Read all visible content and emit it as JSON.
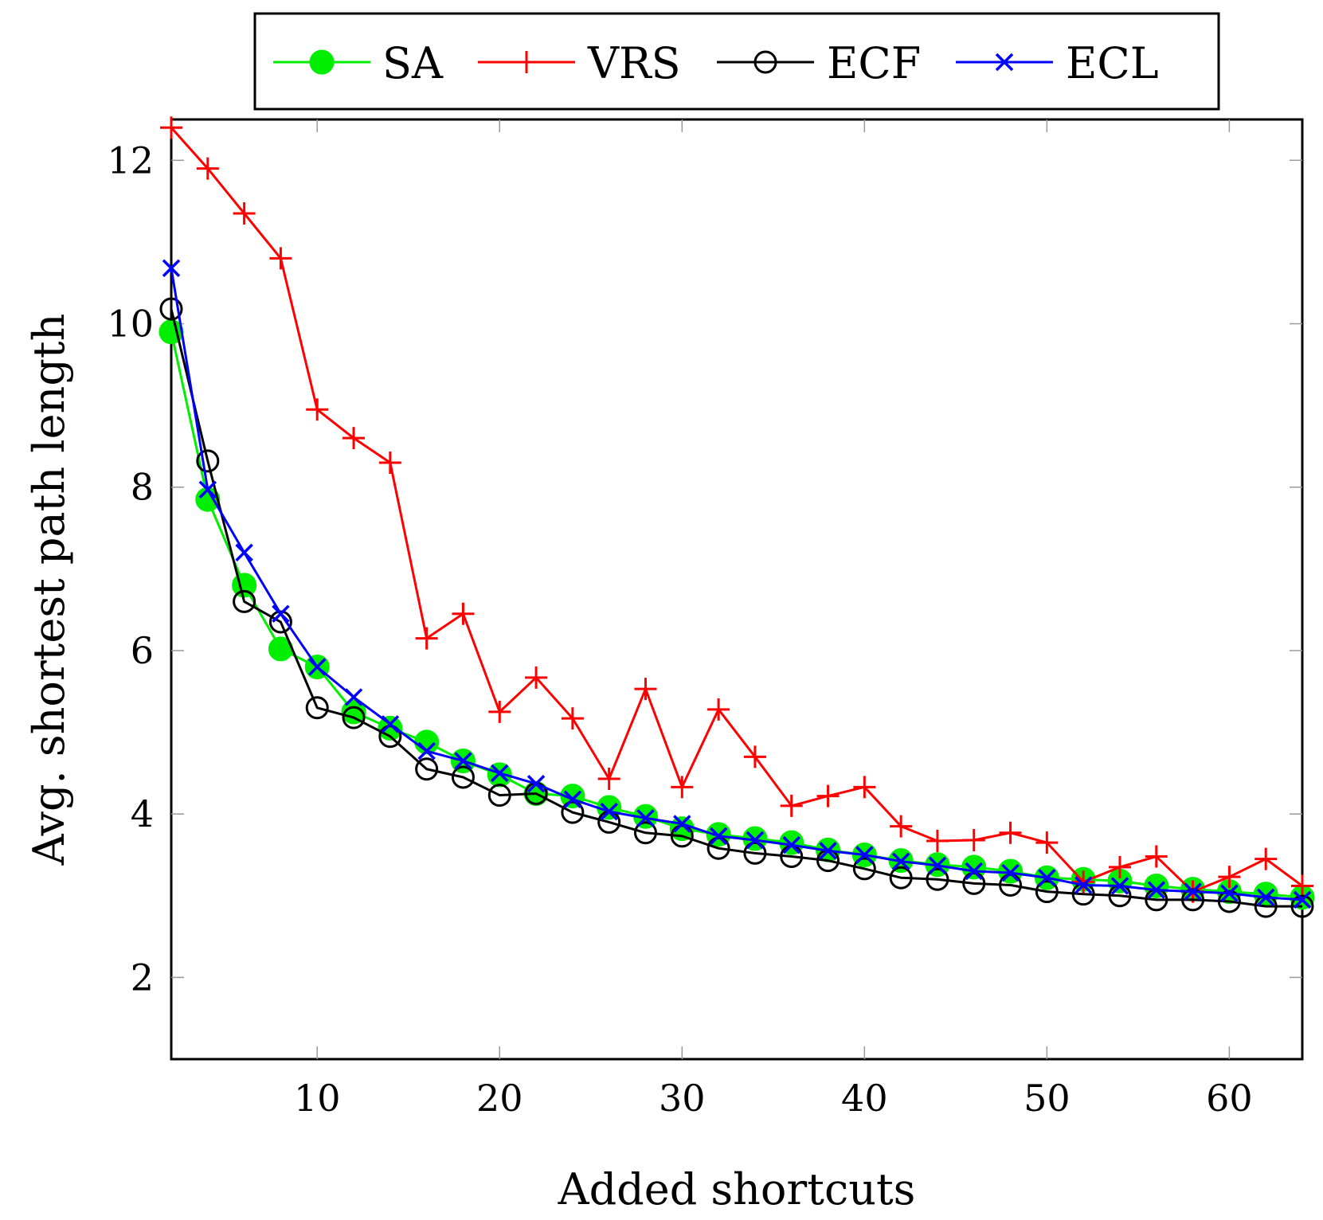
{
  "chart_data": {
    "type": "line",
    "title": "",
    "xlabel": "Added shortcuts",
    "ylabel": "Avg. shortest path length",
    "xlim": [
      2,
      64
    ],
    "ylim": [
      1,
      12.5
    ],
    "xticks": [
      10,
      20,
      30,
      40,
      50,
      60
    ],
    "yticks": [
      2,
      4,
      6,
      8,
      10,
      12
    ],
    "grid": false,
    "legend_position": "top-center",
    "x": [
      2,
      4,
      6,
      8,
      10,
      12,
      14,
      16,
      18,
      20,
      22,
      24,
      26,
      28,
      30,
      32,
      34,
      36,
      38,
      40,
      42,
      44,
      46,
      48,
      50,
      52,
      54,
      56,
      58,
      60,
      62,
      64
    ],
    "series": [
      {
        "name": "SA",
        "color": "#00ee00",
        "marker": "filled-circle",
        "values": [
          9.9,
          7.85,
          6.8,
          6.02,
          5.8,
          5.25,
          5.05,
          4.88,
          4.65,
          4.48,
          4.25,
          4.22,
          4.08,
          3.97,
          3.82,
          3.75,
          3.7,
          3.65,
          3.56,
          3.5,
          3.43,
          3.38,
          3.35,
          3.3,
          3.22,
          3.2,
          3.18,
          3.12,
          3.08,
          3.05,
          3.02,
          2.98
        ]
      },
      {
        "name": "VRS",
        "color": "#ff0000",
        "marker": "plus",
        "values": [
          12.4,
          11.9,
          11.35,
          10.8,
          8.95,
          8.6,
          8.3,
          6.15,
          6.45,
          5.25,
          5.67,
          5.17,
          4.43,
          5.53,
          4.33,
          5.28,
          4.7,
          4.1,
          4.22,
          4.33,
          3.85,
          3.67,
          3.68,
          3.77,
          3.65,
          3.17,
          3.35,
          3.48,
          3.05,
          3.23,
          3.45,
          3.12
        ]
      },
      {
        "name": "ECF",
        "color": "#000000",
        "marker": "open-circle",
        "values": [
          10.18,
          8.32,
          6.6,
          6.35,
          5.3,
          5.18,
          4.95,
          4.55,
          4.45,
          4.23,
          4.25,
          4.02,
          3.9,
          3.77,
          3.73,
          3.58,
          3.52,
          3.48,
          3.43,
          3.33,
          3.22,
          3.2,
          3.15,
          3.13,
          3.05,
          3.02,
          3.0,
          2.95,
          2.95,
          2.93,
          2.87,
          2.87
        ]
      },
      {
        "name": "ECL",
        "color": "#0000ff",
        "marker": "cross",
        "values": [
          10.68,
          7.97,
          7.2,
          6.45,
          5.8,
          5.43,
          5.1,
          4.77,
          4.65,
          4.5,
          4.37,
          4.18,
          4.03,
          3.95,
          3.88,
          3.73,
          3.68,
          3.62,
          3.55,
          3.5,
          3.42,
          3.37,
          3.3,
          3.28,
          3.22,
          3.13,
          3.12,
          3.07,
          3.05,
          3.03,
          2.98,
          2.95
        ]
      }
    ]
  }
}
